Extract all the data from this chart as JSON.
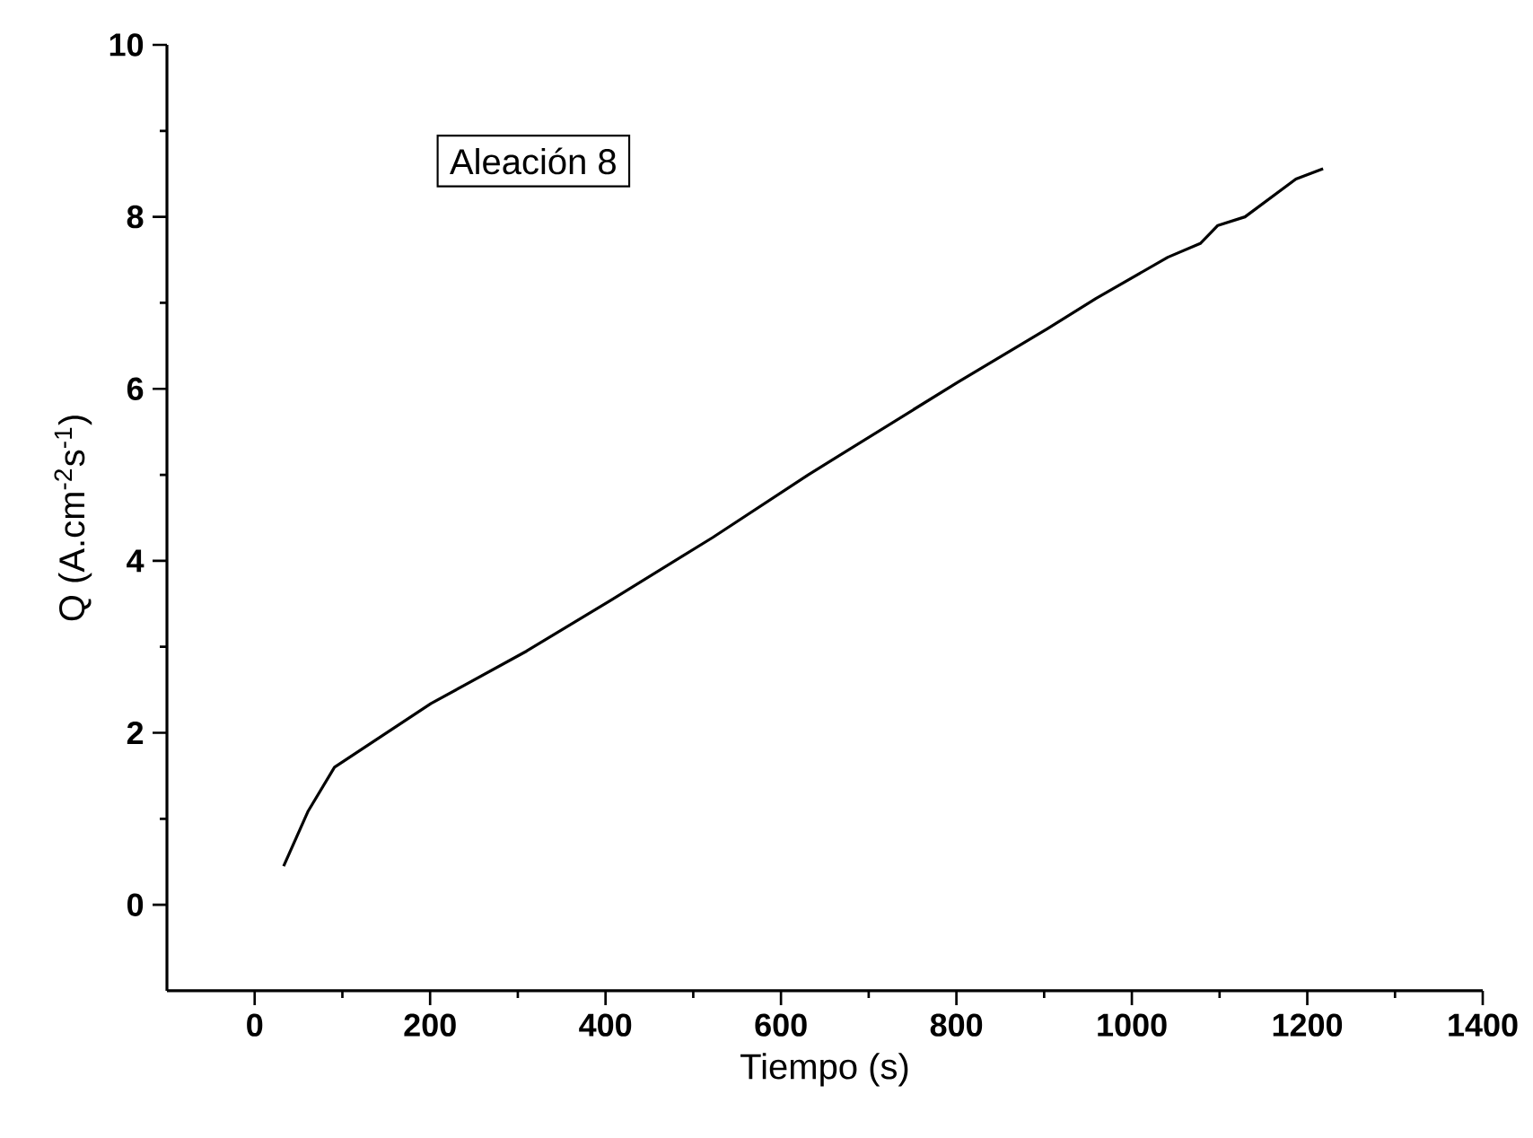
{
  "chart_data": {
    "type": "line",
    "xlabel": "Tiempo (s)",
    "ylabel": "Q (A.cm$^{-2}$s$^{-1}$)",
    "annotations": [
      "Aleación 8"
    ],
    "x": [
      33,
      61,
      91,
      201,
      310,
      406,
      522,
      631,
      802,
      904,
      959,
      1041,
      1078,
      1098,
      1129,
      1187,
      1218
    ],
    "values": [
      0.45,
      1.09,
      1.6,
      2.34,
      2.95,
      3.54,
      4.27,
      5.0,
      6.08,
      6.7,
      7.05,
      7.53,
      7.69,
      7.9,
      8.0,
      8.44,
      8.56
    ],
    "color": "#000000",
    "xlim": [
      -100,
      1400
    ],
    "ylim": [
      -1,
      10
    ],
    "xticks": [
      0,
      200,
      400,
      600,
      800,
      1000,
      1200,
      1400
    ],
    "yticks": [
      0,
      2,
      4,
      6,
      8,
      10
    ]
  }
}
